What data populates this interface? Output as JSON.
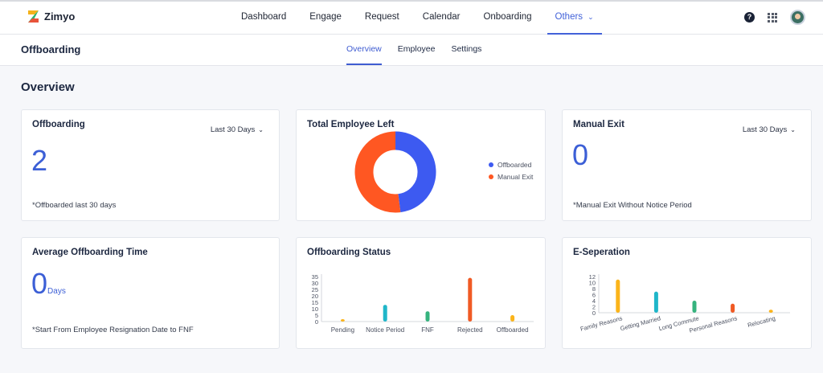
{
  "app": {
    "name": "Zimyo"
  },
  "nav": {
    "items": [
      {
        "label": "Dashboard",
        "active": false
      },
      {
        "label": "Engage",
        "active": false
      },
      {
        "label": "Request",
        "active": false
      },
      {
        "label": "Calendar",
        "active": false
      },
      {
        "label": "Onboarding",
        "active": false
      },
      {
        "label": "Others",
        "active": true
      }
    ],
    "help_icon": "?",
    "apps_icon": "grid-icon",
    "avatar": "user-avatar"
  },
  "page": {
    "title": "Offboarding",
    "tabs": [
      {
        "label": "Overview",
        "active": true
      },
      {
        "label": "Employee",
        "active": false
      },
      {
        "label": "Settings",
        "active": false
      }
    ],
    "section_title": "Overview"
  },
  "cards": {
    "offboarding": {
      "title": "Offboarding",
      "filter": "Last 30 Days",
      "value": "2",
      "note": "*Offboarded last 30 days"
    },
    "total_left": {
      "title": "Total Employee Left"
    },
    "manual_exit": {
      "title": "Manual Exit",
      "filter": "Last 30 Days",
      "value": "0",
      "note": "*Manual Exit Without Notice Period"
    },
    "avg_time": {
      "title": "Average Offboarding Time",
      "value": "0",
      "unit": "Days",
      "note": "*Start From Employee Resignation Date to FNF"
    },
    "status": {
      "title": "Offboarding Status"
    },
    "eseparation": {
      "title": "E-Seperation"
    }
  },
  "colors": {
    "accent": "#3c5fd6",
    "blue": "#3d5af1",
    "orange": "#ff5722",
    "yellow": "#fbb41a",
    "teal": "#1fb6c9",
    "green": "#36b37e",
    "red": "#f05a24"
  },
  "chart_data": [
    {
      "type": "pie",
      "title": "Total Employee Left",
      "categories": [
        "Offboarded",
        "Manual Exit"
      ],
      "values": [
        48,
        52
      ],
      "colors": [
        "#3d5af1",
        "#ff5722"
      ],
      "legend": "right"
    },
    {
      "type": "bar",
      "title": "Offboarding Status",
      "categories": [
        "Pending",
        "Notice Period",
        "FNF",
        "Rejected",
        "Offboarded"
      ],
      "values": [
        1,
        13,
        8,
        34,
        5
      ],
      "colors": [
        "#fbb41a",
        "#1fb6c9",
        "#36b37e",
        "#f05a24",
        "#fbb41a"
      ],
      "ylim": [
        0,
        35
      ],
      "yticks": [
        0,
        5,
        10,
        15,
        20,
        25,
        30,
        35
      ]
    },
    {
      "type": "bar",
      "title": "E-Seperation",
      "categories": [
        "Family Reasons",
        "Getting Married",
        "Long Commute",
        "Personal Reasons",
        "Relocating"
      ],
      "values": [
        11,
        7,
        4,
        3,
        1
      ],
      "colors": [
        "#fbb41a",
        "#1fb6c9",
        "#36b37e",
        "#f05a24",
        "#fbb41a"
      ],
      "ylim": [
        0,
        12
      ],
      "yticks": [
        0,
        2,
        4,
        6,
        8,
        10,
        12
      ]
    }
  ]
}
